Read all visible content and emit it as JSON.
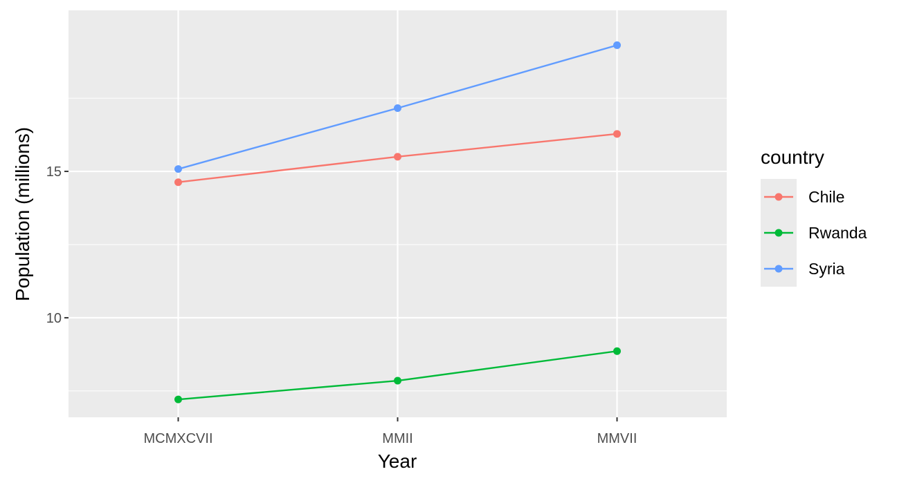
{
  "chart_data": {
    "type": "line",
    "xlabel": "Year",
    "ylabel": "Population (millions)",
    "categories": [
      "MCMXCVII",
      "MMII",
      "MMVII"
    ],
    "yticks": [
      10,
      15
    ],
    "ylim": [
      6.6,
      20.5
    ],
    "grid": true,
    "legend_title": "country",
    "legend_position": "right",
    "series": [
      {
        "name": "Chile",
        "color": "#F8766D",
        "values": [
          14.63,
          15.5,
          16.28
        ]
      },
      {
        "name": "Rwanda",
        "color": "#00BA38",
        "values": [
          7.21,
          7.85,
          8.86
        ]
      },
      {
        "name": "Syria",
        "color": "#619CFF",
        "values": [
          15.08,
          17.16,
          19.31
        ]
      }
    ]
  }
}
